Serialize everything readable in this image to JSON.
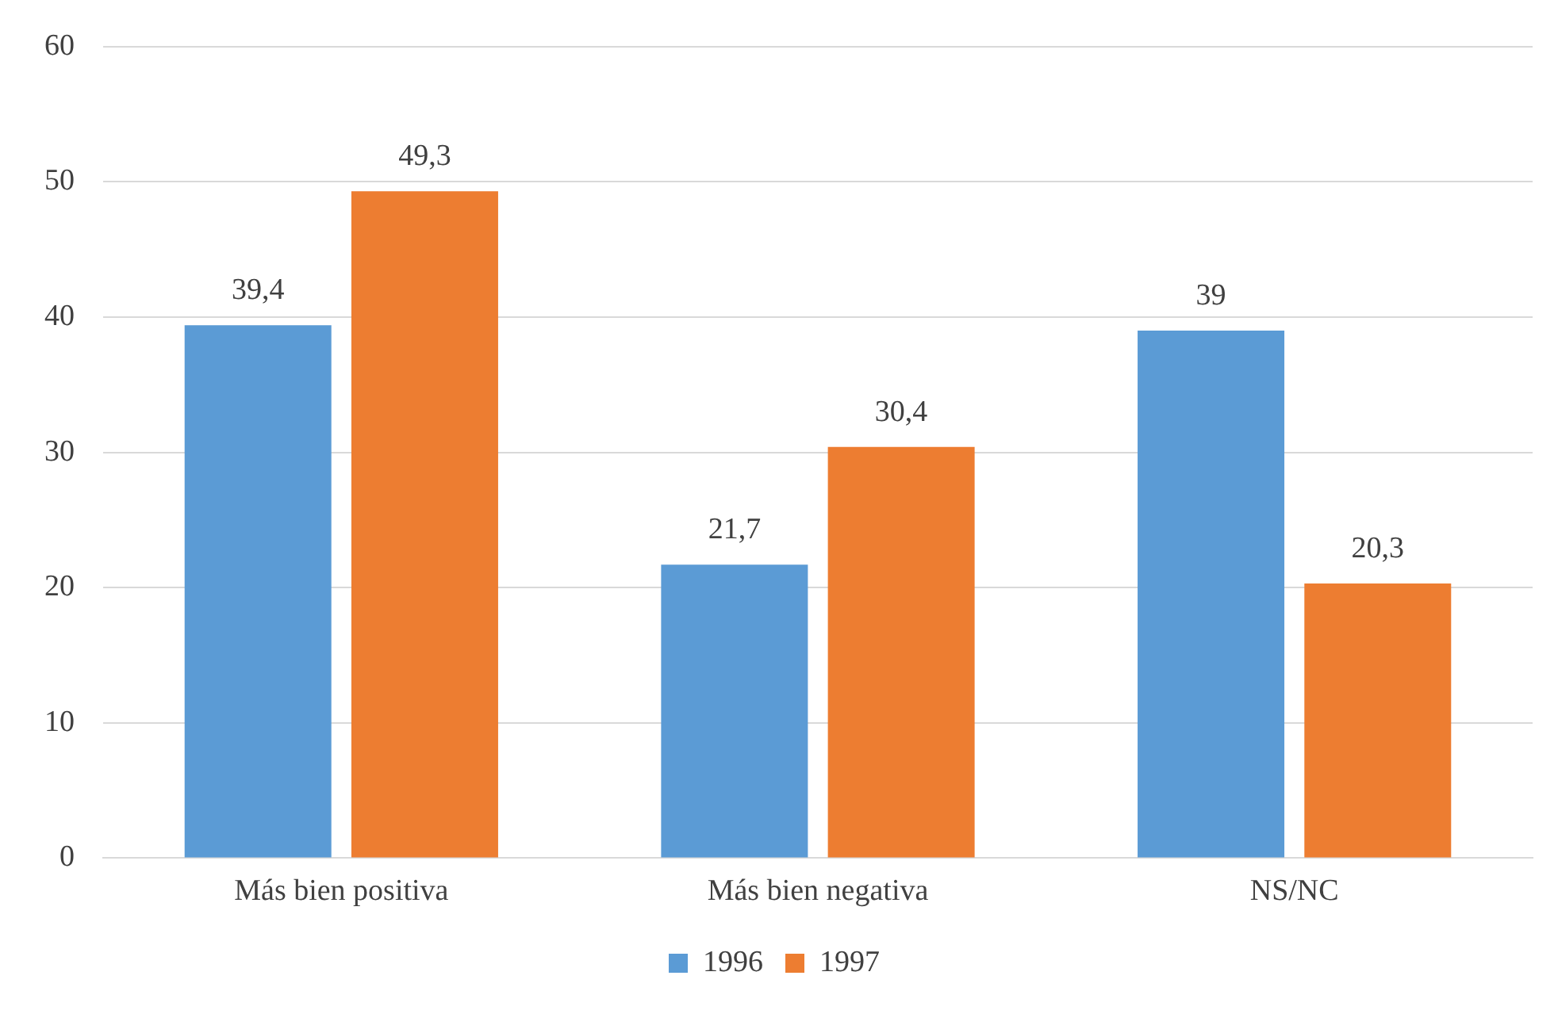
{
  "chart_data": {
    "type": "bar",
    "categories": [
      "Más bien positiva",
      "Más bien negativa",
      "NS/NC"
    ],
    "series": [
      {
        "name": "1996",
        "color": "#5b9bd5",
        "values": [
          39.4,
          21.7,
          39
        ],
        "value_labels": [
          "39,4",
          "21,7",
          "39"
        ]
      },
      {
        "name": "1997",
        "color": "#ed7d31",
        "values": [
          49.3,
          30.4,
          20.3
        ],
        "value_labels": [
          "49,3",
          "30,4",
          "20,3"
        ]
      }
    ],
    "ylim": [
      0,
      60
    ],
    "yticks": [
      0,
      10,
      20,
      30,
      40,
      50,
      60
    ],
    "grid": "y",
    "legend": "bottom"
  }
}
